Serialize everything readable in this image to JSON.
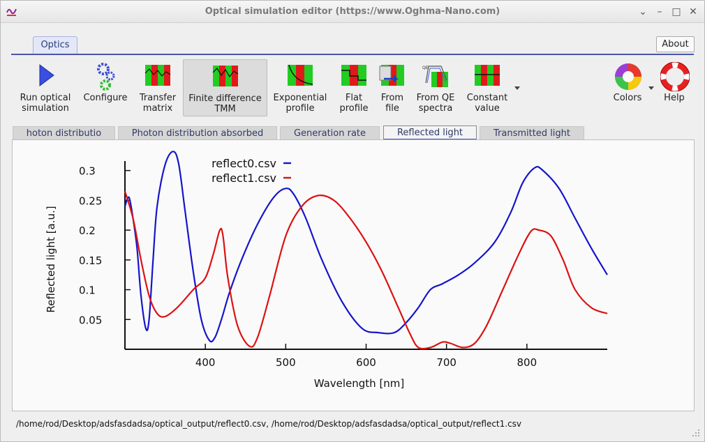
{
  "window": {
    "title": "Optical simulation editor (https://www.Oghma-Nano.com)",
    "controls": [
      "⌄",
      "–",
      "□",
      "✕"
    ]
  },
  "ribbon": {
    "tab": "Optics",
    "about": "About",
    "tools": [
      {
        "id": "run",
        "line1": "Run optical",
        "line2": "simulation"
      },
      {
        "id": "configure",
        "line1": "Configure",
        "line2": ""
      },
      {
        "id": "transfer",
        "line1": "Transfer",
        "line2": "matrix"
      },
      {
        "id": "finite",
        "line1": "Finite difference",
        "line2": "TMM"
      },
      {
        "id": "exponential",
        "line1": "Exponential",
        "line2": "profile"
      },
      {
        "id": "flat",
        "line1": "Flat",
        "line2": "profile"
      },
      {
        "id": "fromfile",
        "line1": "From",
        "line2": "file"
      },
      {
        "id": "fromqe",
        "line1": "From QE",
        "line2": "spectra"
      },
      {
        "id": "constant",
        "line1": "Constant",
        "line2": "value"
      },
      {
        "id": "colors",
        "line1": "Colors",
        "line2": ""
      },
      {
        "id": "help",
        "line1": "Help",
        "line2": ""
      }
    ]
  },
  "tabs": [
    "hoton distributio",
    "Photon distribution absorbed",
    "Generation rate",
    "Reflected light",
    "Transmitted light"
  ],
  "selected_tab": "Reflected light",
  "colors": {
    "series0": "#1515cc",
    "series1": "#dd1111",
    "accent": "#4b55a8"
  },
  "chart_data": {
    "type": "line",
    "title": "",
    "xlabel": "Wavelength [nm]",
    "ylabel": "Reflected light [a.u.]",
    "xlim": [
      300,
      900
    ],
    "ylim": [
      0,
      0.33
    ],
    "xticks": [
      400,
      500,
      600,
      700,
      800
    ],
    "yticks": [
      0.05,
      0.1,
      0.15,
      0.2,
      0.25,
      0.3
    ],
    "ytick_labels": [
      "0.05",
      "0.1",
      "0.15",
      "0.2",
      "0.25",
      "0.3"
    ],
    "grid": false,
    "legend_position": "top-center",
    "series": [
      {
        "name": "reflect0.csv",
        "color": "#1515cc",
        "x": [
          300,
          305,
          310,
          315,
          320,
          326,
          330,
          335,
          340,
          350,
          360,
          367,
          375,
          385,
          395,
          405,
          412,
          420,
          430,
          445,
          465,
          485,
          500,
          510,
          525,
          545,
          570,
          595,
          615,
          635,
          650,
          665,
          680,
          695,
          715,
          735,
          760,
          780,
          795,
          810,
          820,
          840,
          860,
          880,
          900
        ],
        "y": [
          0.24,
          0.255,
          0.22,
          0.17,
          0.09,
          0.035,
          0.05,
          0.15,
          0.24,
          0.31,
          0.332,
          0.31,
          0.23,
          0.13,
          0.05,
          0.015,
          0.02,
          0.05,
          0.095,
          0.15,
          0.21,
          0.255,
          0.27,
          0.26,
          0.22,
          0.15,
          0.08,
          0.035,
          0.028,
          0.028,
          0.045,
          0.07,
          0.1,
          0.11,
          0.125,
          0.145,
          0.18,
          0.23,
          0.28,
          0.305,
          0.3,
          0.27,
          0.22,
          0.17,
          0.125
        ]
      },
      {
        "name": "reflect1.csv",
        "color": "#dd1111",
        "x": [
          300,
          310,
          320,
          330,
          340,
          350,
          365,
          385,
          400,
          410,
          418,
          422,
          428,
          440,
          455,
          465,
          480,
          500,
          520,
          540,
          560,
          580,
          600,
          620,
          640,
          655,
          665,
          680,
          695,
          705,
          720,
          735,
          750,
          770,
          790,
          805,
          815,
          830,
          845,
          860,
          880,
          900
        ],
        "y": [
          0.265,
          0.22,
          0.15,
          0.09,
          0.06,
          0.055,
          0.07,
          0.1,
          0.12,
          0.16,
          0.2,
          0.19,
          0.12,
          0.04,
          0.005,
          0.02,
          0.09,
          0.19,
          0.24,
          0.258,
          0.25,
          0.22,
          0.18,
          0.13,
          0.07,
          0.025,
          0.003,
          0.003,
          0.012,
          0.01,
          0.003,
          0.01,
          0.04,
          0.1,
          0.16,
          0.198,
          0.2,
          0.19,
          0.15,
          0.1,
          0.07,
          0.06
        ]
      }
    ]
  },
  "status": "/home/rod/Desktop/adsfasdadsa/optical_output/reflect0.csv, /home/rod/Desktop/adsfasdadsa/optical_output/reflect1.csv"
}
